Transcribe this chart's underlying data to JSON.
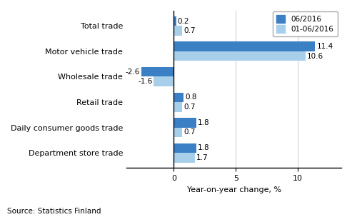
{
  "categories": [
    "Department store trade",
    "Daily consumer goods trade",
    "Retail trade",
    "Wholesale trade",
    "Motor vehicle trade",
    "Total trade"
  ],
  "series1_label": "06/2016",
  "series2_label": "01-06/2016",
  "series1_values": [
    1.8,
    1.8,
    0.8,
    -2.6,
    11.4,
    0.2
  ],
  "series2_values": [
    1.7,
    0.7,
    0.7,
    -1.6,
    10.6,
    0.7
  ],
  "series1_color": "#3B7FC4",
  "series2_color": "#A8CFEA",
  "xlabel": "Year-on-year change, %",
  "source_text": "Source: Statistics Finland",
  "xlim": [
    -3.8,
    13.5
  ],
  "xticks": [
    0,
    5,
    10
  ],
  "bar_height": 0.38,
  "label_fontsize": 7.5,
  "tick_fontsize": 8,
  "legend_fontsize": 7.5,
  "source_fontsize": 7.5,
  "xlabel_fontsize": 8,
  "category_fontsize": 8
}
